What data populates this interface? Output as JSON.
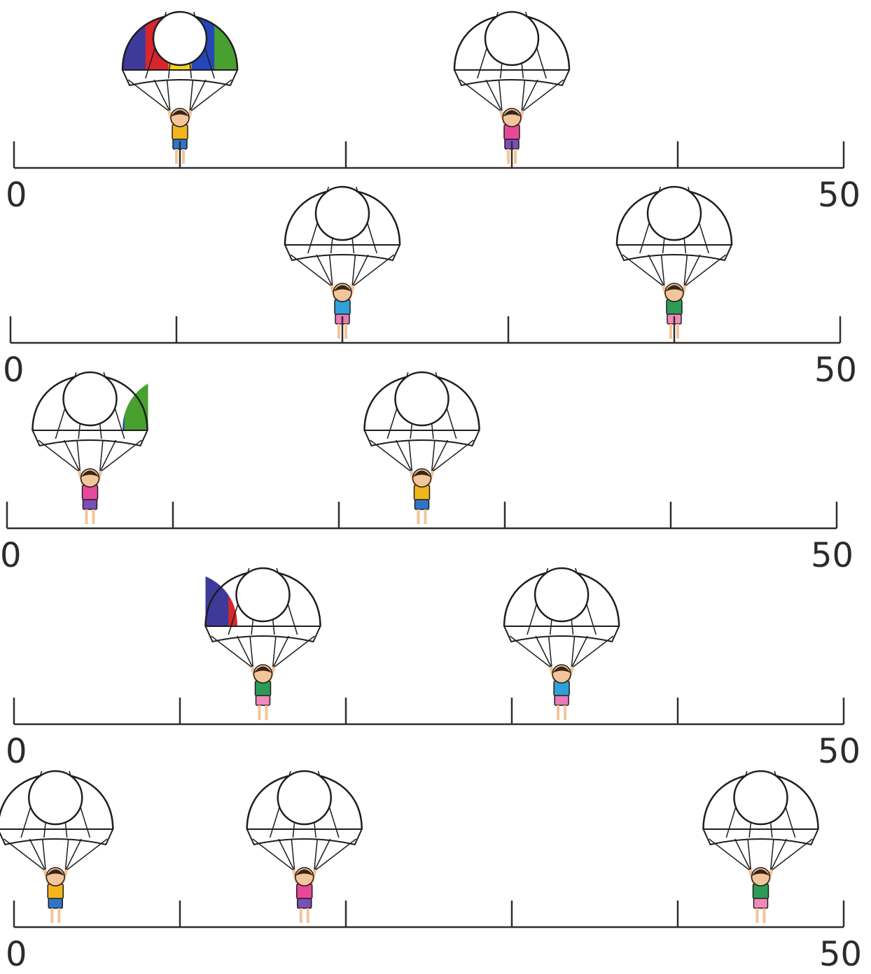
{
  "number_lines": [
    {
      "start_label": "0",
      "end_label": "50",
      "segments": 5,
      "jumper_positions": [
        1,
        3
      ]
    },
    {
      "start_label": "0",
      "end_label": "50",
      "segments": 5,
      "jumper_positions": [
        2,
        4
      ]
    },
    {
      "start_label": "0",
      "end_label": "50",
      "segments": 5,
      "jumper_positions": [
        0.5,
        2.5
      ]
    },
    {
      "start_label": "0",
      "end_label": "50",
      "segments": 5,
      "jumper_positions": [
        1.5,
        3.3
      ]
    },
    {
      "start_label": "0",
      "end_label": "50",
      "segments": 5,
      "jumper_positions": [
        0.25,
        1.75,
        4.5
      ]
    }
  ],
  "colors": {
    "line": "#2e2e2e",
    "label": "#2b2b2b",
    "canopy_purple": "#3d3a9a",
    "canopy_red": "#d9262c",
    "canopy_yellow": "#f4d31f",
    "canopy_blue": "#2546b8",
    "canopy_green": "#48a02e",
    "canopy_white": "#ffffff",
    "hair": "#3a2414",
    "skin": "#f3c59a"
  },
  "jumper_styles": [
    {
      "shirt": "#f2b51c",
      "pants": "#2f74c8"
    },
    {
      "shirt": "#e8489a",
      "pants": "#7a4fb6"
    },
    {
      "shirt": "#2fa0d8",
      "pants": "#e77bb6"
    },
    {
      "shirt": "#2e9a58",
      "pants": "#f08ab8"
    }
  ],
  "icons": {
    "jumper": "parachute-jumper-icon",
    "answer": "answer-circle"
  }
}
